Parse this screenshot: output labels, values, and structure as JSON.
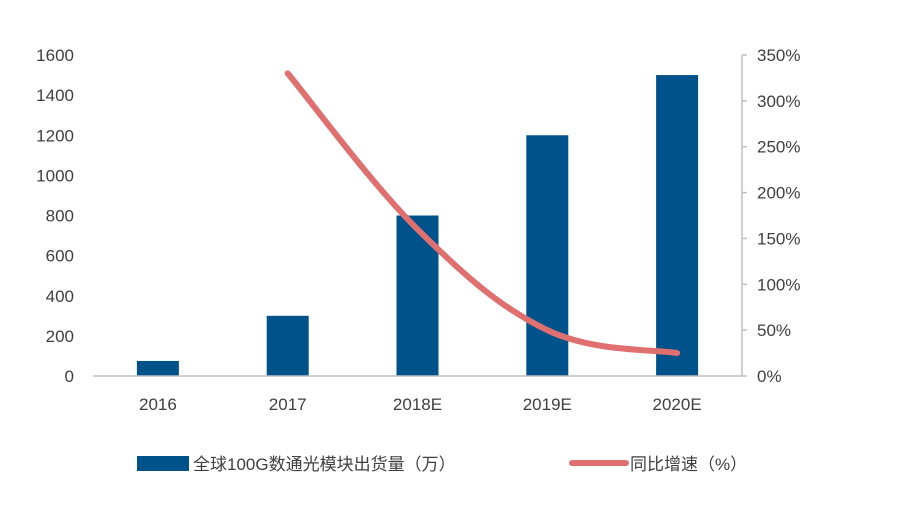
{
  "chart_data": {
    "type": "bar",
    "categories": [
      "2016",
      "2017",
      "2018E",
      "2019E",
      "2020E"
    ],
    "series": [
      {
        "name": "全球100G数通光模块出货量（万）",
        "type": "bar",
        "axis": "left",
        "color": "#00538A",
        "values": [
          75,
          300,
          800,
          1200,
          1500
        ]
      },
      {
        "name": "同比增速（%）",
        "type": "line",
        "axis": "right",
        "color": "#E07070",
        "values": [
          null,
          330,
          160,
          50,
          25
        ]
      }
    ],
    "y_left": {
      "range": [
        0,
        1600
      ],
      "ticks": [
        "0",
        "200",
        "400",
        "600",
        "800",
        "1000",
        "1200",
        "1400",
        "1600"
      ]
    },
    "y_right": {
      "range": [
        0,
        350
      ],
      "ticks": [
        "0%",
        "50%",
        "100%",
        "150%",
        "200%",
        "250%",
        "300%",
        "350%"
      ]
    },
    "grid": false,
    "legend_placement": "bottom"
  }
}
